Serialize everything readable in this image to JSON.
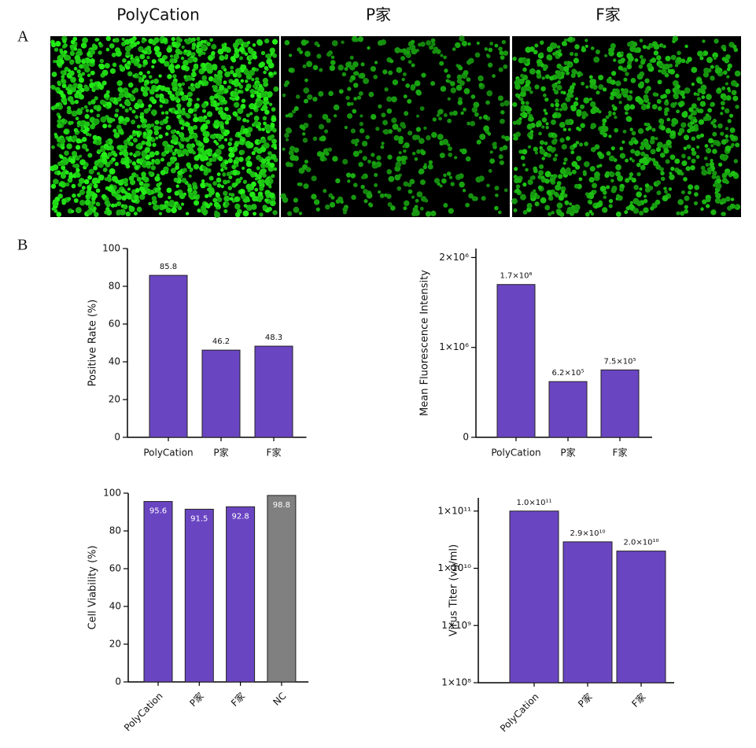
{
  "header": {
    "labels": [
      "PolyCation",
      "P家",
      "F家"
    ]
  },
  "panels": [
    "A",
    "B"
  ],
  "chart_data": [
    {
      "type": "bar",
      "y_label": "Positive Rate (%)",
      "categories": [
        "PolyCation",
        "P家",
        "F家"
      ],
      "values": [
        85.8,
        46.2,
        48.3
      ],
      "colors": [
        "#6a45c2",
        "#6a45c2",
        "#6a45c2"
      ],
      "ylim": [
        0,
        100
      ],
      "yticks": [
        0,
        20,
        40,
        60,
        80,
        100
      ],
      "data_labels": "above"
    },
    {
      "type": "bar",
      "y_label": "Mean Fluorescence Intensity",
      "categories": [
        "PolyCation",
        "P家",
        "F家"
      ],
      "values": [
        1700000,
        620000,
        750000
      ],
      "value_labels": [
        "1.7×10⁶",
        "6.2×10⁵",
        "7.5×10⁵"
      ],
      "colors": [
        "#6a45c2",
        "#6a45c2",
        "#6a45c2"
      ],
      "ylim": [
        0,
        2100000
      ],
      "yticks": [
        0,
        {
          "value": 1000000,
          "label": "1×10⁶"
        },
        {
          "value": 2000000,
          "label": "2×10⁶"
        }
      ],
      "data_labels": "above"
    },
    {
      "type": "bar",
      "y_label": "Cell Viability (%)",
      "categories": [
        "PolyCation",
        "P家",
        "F家",
        "NC"
      ],
      "values": [
        95.6,
        91.5,
        92.8,
        98.8
      ],
      "colors": [
        "#6a45c2",
        "#6a45c2",
        "#6a45c2",
        "#808080"
      ],
      "ylim": [
        0,
        100
      ],
      "yticks": [
        0,
        20,
        40,
        60,
        80,
        100
      ],
      "data_labels": "inside"
    },
    {
      "type": "bar",
      "y_label": "Virus Titer (vg/ml)",
      "categories": [
        "PolyCation",
        "P家",
        "F家"
      ],
      "values": [
        100000000000,
        29000000000,
        20000000000
      ],
      "value_labels": [
        "1.0×10¹¹",
        "2.9×10¹⁰",
        "2.0×10¹⁰"
      ],
      "colors": [
        "#6a45c2",
        "#6a45c2",
        "#6a45c2"
      ],
      "log_scale": true,
      "ylim": [
        100000000,
        170000000000
      ],
      "yticks": [
        {
          "value": 100000000,
          "label": "1×10⁸"
        },
        {
          "value": 1000000000,
          "label": "1×10⁹"
        },
        {
          "value": 10000000000,
          "label": "1×10¹⁰"
        },
        {
          "value": 100000000000,
          "label": "1×10¹¹"
        }
      ],
      "data_labels": "above"
    }
  ]
}
